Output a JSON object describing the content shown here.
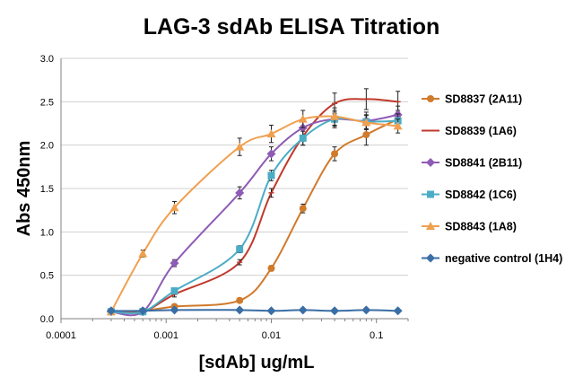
{
  "chart_data": {
    "type": "line",
    "title": "LAG-3 sdAb ELISA Titration",
    "xlabel": "[sdAb] ug/mL",
    "ylabel": "Abs  450nm",
    "x_scale": "log",
    "xlim": [
      0.0001,
      0.2
    ],
    "ylim": [
      0,
      3.0
    ],
    "x_ticks": [
      "0.0001",
      "0.001",
      "0.01",
      "0.1"
    ],
    "y_ticks": [
      "0.0",
      "0.5",
      "1.0",
      "1.5",
      "2.0",
      "2.5",
      "3.0"
    ],
    "grid": "horizontal",
    "legend_position": "right",
    "x": [
      0.0003,
      0.0006,
      0.0012,
      0.005,
      0.01,
      0.02,
      0.04,
      0.08,
      0.16
    ],
    "series": [
      {
        "name": "SD8837 (2A11)",
        "color": "#d07a2c",
        "marker": "circle",
        "values": [
          0.08,
          0.09,
          0.14,
          0.21,
          0.58,
          1.27,
          1.9,
          2.12,
          2.3
        ],
        "errors": [
          0.02,
          0.02,
          0.02,
          0.02,
          0.03,
          0.05,
          0.08,
          0.12,
          0.1
        ]
      },
      {
        "name": "SD8839 (1A6)",
        "color": "#c0392b",
        "marker": "none",
        "values": [
          0.08,
          0.08,
          0.28,
          0.65,
          1.45,
          2.1,
          2.48,
          2.53,
          2.5
        ],
        "errors": [
          0.02,
          0.02,
          0.03,
          0.03,
          0.05,
          0.1,
          0.12,
          0.12,
          0.12
        ]
      },
      {
        "name": "SD8841 (2B11)",
        "color": "#8e5bb5",
        "marker": "diamond",
        "values": [
          0.08,
          0.08,
          0.64,
          1.45,
          1.9,
          2.2,
          2.3,
          2.28,
          2.35
        ],
        "errors": [
          0.02,
          0.02,
          0.04,
          0.07,
          0.08,
          0.1,
          0.1,
          0.1,
          0.1
        ]
      },
      {
        "name": "SD8842 (1C6)",
        "color": "#4bacc6",
        "marker": "square",
        "values": [
          0.08,
          0.08,
          0.32,
          0.8,
          1.65,
          2.08,
          2.3,
          2.27,
          2.28
        ],
        "errors": [
          0.02,
          0.02,
          0.03,
          0.04,
          0.06,
          0.08,
          0.08,
          0.08,
          0.08
        ]
      },
      {
        "name": "SD8843 (1A8)",
        "color": "#f0a050",
        "marker": "triangle",
        "values": [
          0.08,
          0.75,
          1.28,
          1.98,
          2.13,
          2.3,
          2.33,
          2.26,
          2.22
        ],
        "errors": [
          0.02,
          0.04,
          0.07,
          0.1,
          0.1,
          0.1,
          0.1,
          0.08,
          0.08
        ]
      },
      {
        "name": "negative control (1H4)",
        "color": "#3a6ea5",
        "marker": "diamond",
        "values": [
          0.09,
          0.09,
          0.1,
          0.1,
          0.09,
          0.1,
          0.09,
          0.1,
          0.09
        ],
        "errors": [
          0.01,
          0.01,
          0.01,
          0.01,
          0.01,
          0.01,
          0.01,
          0.01,
          0.01
        ]
      }
    ]
  }
}
